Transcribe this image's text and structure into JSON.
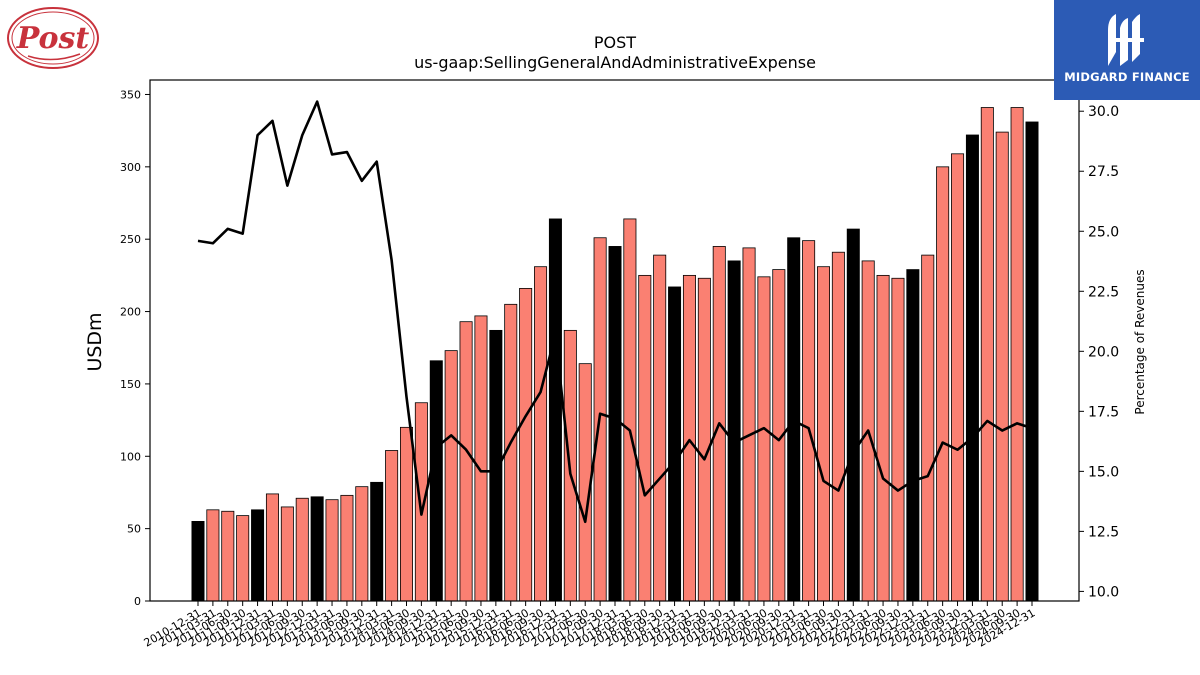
{
  "header": {
    "ticker": "POST",
    "metric": "us-gaap:SellingGeneralAndAdministrativeExpense"
  },
  "logos": {
    "left_brand_text": "Post",
    "right_brand_text": "MIDGARD FINANCE",
    "right_brand_bg": "#2c5bb5"
  },
  "chart_data": {
    "type": "bar",
    "title": "POST",
    "subtitle": "us-gaap:SellingGeneralAndAdministrativeExpense",
    "ylabel": "USDm",
    "y2label": "Percentage of Revenues",
    "ylim": [
      0,
      360
    ],
    "y2lim": [
      9.6,
      31.3
    ],
    "yticks": [
      0,
      50,
      100,
      150,
      200,
      250,
      300,
      350
    ],
    "y2ticks": [
      "10.0",
      "12.5",
      "15.0",
      "17.5",
      "20.0",
      "22.5",
      "25.0",
      "27.5",
      "30.0"
    ],
    "colors": {
      "annual_bar": "#000000",
      "quarter_bar": "#fa8072",
      "line": "#000000"
    },
    "categories": [
      "2010-12-31",
      "2011-03-31",
      "2011-06-30",
      "2011-09-30",
      "2011-12-31",
      "2012-03-31",
      "2012-06-30",
      "2012-09-30",
      "2012-12-31",
      "2013-03-31",
      "2013-06-30",
      "2013-09-30",
      "2013-12-31",
      "2014-03-31",
      "2014-06-30",
      "2014-09-30",
      "2014-12-31",
      "2015-03-31",
      "2015-06-30",
      "2015-09-30",
      "2015-12-31",
      "2016-03-31",
      "2016-06-30",
      "2016-09-30",
      "2016-12-31",
      "2017-03-31",
      "2017-06-30",
      "2017-09-30",
      "2017-12-31",
      "2018-03-31",
      "2018-06-30",
      "2018-09-30",
      "2018-12-31",
      "2019-03-31",
      "2019-06-30",
      "2019-09-30",
      "2019-12-31",
      "2020-03-31",
      "2020-06-30",
      "2020-09-30",
      "2020-12-31",
      "2021-03-31",
      "2021-06-30",
      "2021-09-30",
      "2021-12-31",
      "2022-03-31",
      "2022-06-30",
      "2022-09-30",
      "2022-12-31",
      "2023-03-31",
      "2023-06-30",
      "2023-09-30",
      "2023-12-31",
      "2024-03-31",
      "2024-06-30",
      "2024-09-30",
      "2024-12-31"
    ],
    "tick_labels": [
      "2010-12-31",
      "2011-03-31",
      "2011-06-30",
      "2011-09-30",
      "2011-12-31",
      "2012-03-31",
      "2012-06-30",
      "2012-09-30",
      "2012-12-31",
      "2013-03-31",
      "2013-06-30",
      "2013-09-30",
      "2013-12-31",
      "2014-03-31",
      "2014-06-30",
      "2014-09-30",
      "2014-12-31",
      "2015-03-31",
      "2015-06-30",
      "2015-09-30",
      "2015-12-31",
      "2016-03-31",
      "2016-06-30",
      "2016-09-30",
      "2016-12-31",
      "2017-03-31",
      "2017-06-30",
      "2017-09-30",
      "2017-12-31",
      "2018-03-31",
      "2018-06-30",
      "2018-09-30",
      "2018-12-31",
      "2019-03-31",
      "2019-06-30",
      "2019-09-30",
      "2019-12-31",
      "2020-03-31",
      "2020-06-30",
      "2020-09-30",
      "2020-12-31",
      "2021-03-31",
      "2021-06-30",
      "2021-09-30",
      "2021-12-31",
      "2022-03-31",
      "2022-06-30",
      "2022-09-30",
      "2022-12-31",
      "2023-03-31",
      "2023-06-30",
      "2023-09-30",
      "2023-12-31",
      "2024-03-31",
      "2024-06-30",
      "2024-09-30",
      "2024-12-31"
    ],
    "annual_flags": [
      1,
      0,
      0,
      0,
      1,
      0,
      0,
      0,
      1,
      0,
      0,
      0,
      1,
      0,
      0,
      0,
      1,
      0,
      0,
      0,
      1,
      0,
      0,
      0,
      1,
      0,
      0,
      0,
      1,
      0,
      0,
      0,
      1,
      0,
      0,
      0,
      1,
      0,
      0,
      0,
      1,
      0,
      0,
      0,
      1,
      0,
      0,
      0,
      1,
      0,
      0,
      0,
      1,
      0,
      0,
      0,
      1
    ],
    "values": [
      55,
      63,
      62,
      59,
      63,
      74,
      65,
      71,
      72,
      70,
      73,
      79,
      82,
      104,
      120,
      137,
      166,
      173,
      193,
      197,
      187,
      205,
      216,
      231,
      264,
      187,
      164,
      251,
      245,
      264,
      225,
      239,
      217,
      225,
      223,
      245,
      235,
      244,
      224,
      229,
      251,
      249,
      231,
      241,
      257,
      235,
      225,
      223,
      229,
      239,
      300,
      309,
      322,
      341,
      324,
      341,
      331
    ],
    "series": [
      {
        "name": "Percentage of Revenues",
        "axis": "right",
        "values": [
          24.6,
          24.5,
          25.1,
          24.9,
          29.0,
          29.6,
          26.9,
          29.0,
          30.4,
          28.2,
          28.3,
          27.1,
          27.9,
          23.8,
          18.1,
          13.2,
          16.0,
          16.5,
          15.9,
          15.0,
          15.0,
          16.2,
          17.3,
          18.3,
          20.7,
          14.9,
          12.9,
          17.4,
          17.2,
          16.7,
          14.0,
          14.7,
          15.4,
          16.3,
          15.5,
          17.0,
          16.2,
          16.5,
          16.8,
          16.3,
          17.1,
          16.8,
          14.6,
          14.2,
          15.8,
          16.7,
          14.7,
          14.2,
          14.6,
          14.8,
          16.2,
          15.9,
          16.4,
          17.1,
          16.7,
          17.0,
          16.8
        ]
      }
    ],
    "grid": false,
    "legend": "none"
  }
}
